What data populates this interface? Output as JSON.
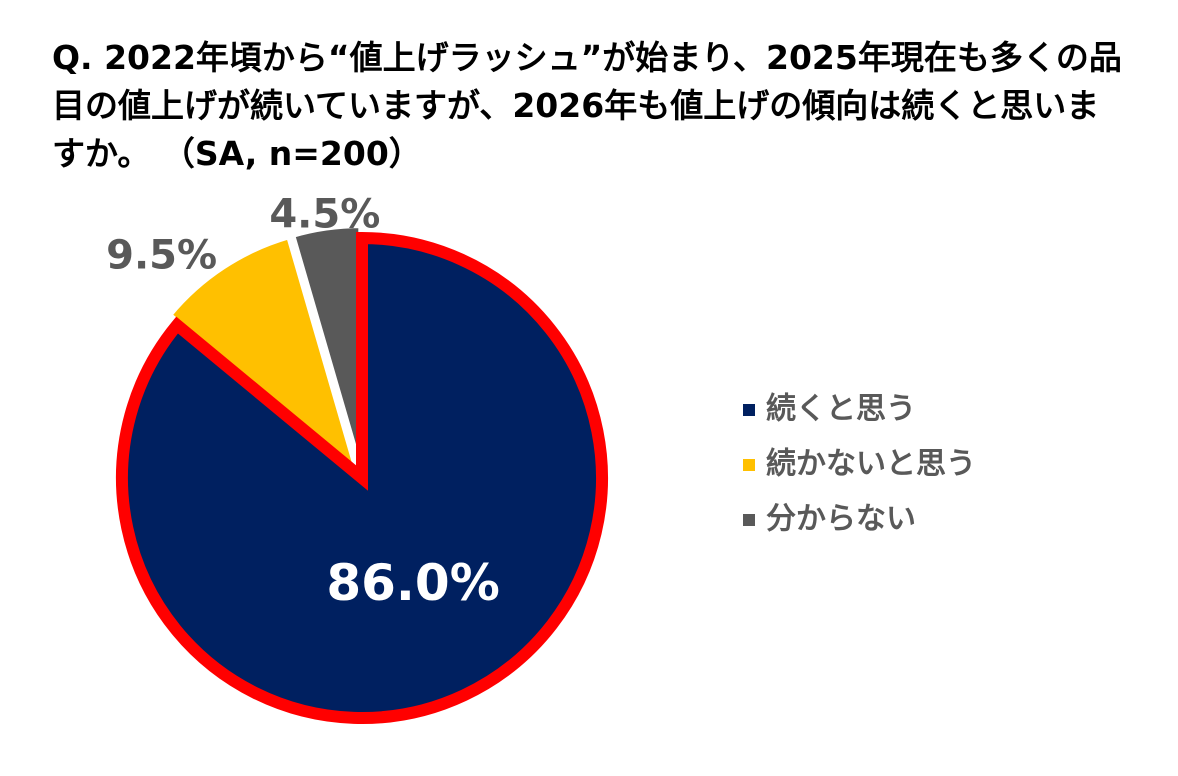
{
  "chart_data": {
    "type": "pie",
    "title": "Q. 2022年頃から“値上げラッシュ”が始まり、2025年現在も多くの品目の値上げが続いていますが、2026年も値上げの傾向は続くと思いますか。 （SA, n=200）",
    "categories": [
      "続くと思う",
      "続かないと思う",
      "分からない"
    ],
    "values": [
      86.0,
      9.5,
      4.5
    ],
    "value_labels": [
      "86.0%",
      "9.5%",
      "4.5%"
    ],
    "colors": [
      "#002060",
      "#FFC000",
      "#595959"
    ],
    "legend": "right"
  }
}
